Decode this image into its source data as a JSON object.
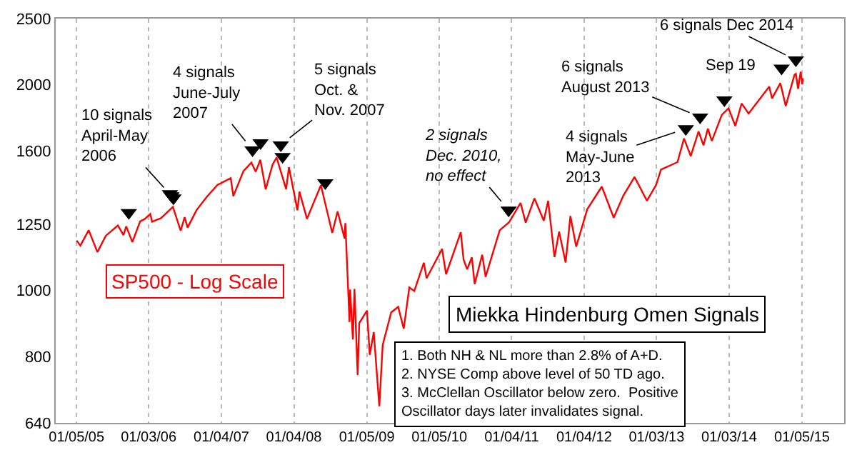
{
  "chart_data": {
    "type": "line",
    "title": "Miekka Hindenburg Omen Signals",
    "subtitle": "SP500 - Log Scale",
    "log": true,
    "grid": "x",
    "line_style": "solid",
    "xlim": [
      "2004-09-22",
      "2015-08-05"
    ],
    "ylim": [
      640,
      2500
    ],
    "xticks": [
      {
        "value": "2005-01-05",
        "label": "01/05/05"
      },
      {
        "value": "2006-01-03",
        "label": "01/03/06"
      },
      {
        "value": "2007-01-04",
        "label": "01/04/07"
      },
      {
        "value": "2008-01-04",
        "label": "01/04/08"
      },
      {
        "value": "2009-01-05",
        "label": "01/05/09"
      },
      {
        "value": "2010-01-05",
        "label": "01/05/10"
      },
      {
        "value": "2011-01-04",
        "label": "01/04/11"
      },
      {
        "value": "2012-01-04",
        "label": "01/04/12"
      },
      {
        "value": "2013-01-03",
        "label": "01/03/13"
      },
      {
        "value": "2014-01-03",
        "label": "01/03/14"
      },
      {
        "value": "2015-01-05",
        "label": "01/05/15"
      }
    ],
    "yticks": [
      640,
      800,
      1000,
      1250,
      1600,
      2000,
      2500
    ],
    "series": [
      {
        "color": "#ff0000",
        "x": [
          "2005-01-05",
          "2005-01-24",
          "2005-03-07",
          "2005-04-20",
          "2005-06-01",
          "2005-08-01",
          "2005-08-29",
          "2005-09-12",
          "2005-10-13",
          "2005-11-21",
          "2005-12-14",
          "2006-01-11",
          "2006-01-20",
          "2006-03-06",
          "2006-05-05",
          "2006-06-13",
          "2006-07-03",
          "2006-07-18",
          "2006-09-01",
          "2006-10-20",
          "2006-12-15",
          "2007-02-20",
          "2007-03-05",
          "2007-04-25",
          "2007-06-04",
          "2007-06-26",
          "2007-07-19",
          "2007-08-15",
          "2007-09-19",
          "2007-10-09",
          "2007-11-26",
          "2007-12-10",
          "2008-01-22",
          "2008-02-01",
          "2008-03-10",
          "2008-05-19",
          "2008-07-15",
          "2008-08-11",
          "2008-09-15",
          "2008-09-19",
          "2008-10-10",
          "2008-10-13",
          "2008-10-27",
          "2008-11-04",
          "2008-11-20",
          "2008-11-28",
          "2009-01-06",
          "2009-01-20",
          "2009-02-09",
          "2009-03-09",
          "2009-03-26",
          "2009-05-08",
          "2009-06-12",
          "2009-07-10",
          "2009-08-07",
          "2009-09-01",
          "2009-10-19",
          "2009-11-02",
          "2010-01-19",
          "2010-02-08",
          "2010-04-23",
          "2010-05-07",
          "2010-05-25",
          "2010-06-18",
          "2010-07-02",
          "2010-08-09",
          "2010-08-26",
          "2010-11-05",
          "2010-12-22",
          "2011-02-18",
          "2011-03-16",
          "2011-04-29",
          "2011-06-15",
          "2011-07-07",
          "2011-08-08",
          "2011-08-31",
          "2011-10-03",
          "2011-10-27",
          "2011-11-25",
          "2012-01-20",
          "2012-04-02",
          "2012-06-01",
          "2012-07-19",
          "2012-09-14",
          "2012-11-15",
          "2012-12-31",
          "2013-01-25",
          "2013-04-18",
          "2013-05-21",
          "2013-06-24",
          "2013-08-02",
          "2013-08-27",
          "2013-09-18",
          "2013-10-08",
          "2013-11-27",
          "2013-12-31",
          "2014-02-03",
          "2014-03-07",
          "2014-04-11",
          "2014-07-24",
          "2014-08-07",
          "2014-09-18",
          "2014-10-15",
          "2014-11-28",
          "2014-12-05",
          "2014-12-16",
          "2014-12-29",
          "2015-01-06",
          "2015-01-09"
        ],
        "values": [
          1183,
          1163,
          1225,
          1138,
          1202,
          1245,
          1205,
          1241,
          1177,
          1262,
          1272,
          1294,
          1261,
          1276,
          1325,
          1223,
          1280,
          1236,
          1311,
          1368,
          1427,
          1460,
          1374,
          1495,
          1539,
          1492,
          1553,
          1406,
          1529,
          1565,
          1407,
          1515,
          1310,
          1395,
          1273,
          1426,
          1214,
          1305,
          1192,
          1255,
          899,
          1003,
          848,
          1005,
          752,
          896,
          934,
          805,
          869,
          677,
          832,
          929,
          946,
          879,
          1010,
          998,
          1098,
          1042,
          1150,
          1056,
          1217,
          1110,
          1074,
          1118,
          1022,
          1128,
          1047,
          1225,
          1258,
          1343,
          1257,
          1364,
          1265,
          1353,
          1119,
          1219,
          1099,
          1285,
          1159,
          1315,
          1419,
          1278,
          1376,
          1466,
          1353,
          1426,
          1503,
          1541,
          1669,
          1573,
          1709,
          1631,
          1725,
          1655,
          1807,
          1848,
          1741,
          1878,
          1815,
          1988,
          1910,
          2011,
          1862,
          2068,
          2075,
          1973,
          2090,
          2003,
          2045
        ]
      },
      {
        "type": "scatter",
        "color": "#000000",
        "marker": "triangle",
        "x": [
          "2005-09-25",
          "2006-04-20",
          "2006-04-28",
          "2006-05-08",
          "2007-06-10",
          "2007-07-20",
          "2007-10-30",
          "2007-11-08",
          "2008-06-10",
          "2010-12-20",
          "2013-05-30",
          "2013-08-10",
          "2013-12-10",
          "2014-09-24",
          "2014-12-05"
        ],
        "values": [
          1300,
          1385,
          1375,
          1365,
          1605,
          1644,
          1633,
          1570,
          1437,
          1311,
          1725,
          1793,
          1900,
          2115,
          2174
        ]
      }
    ],
    "annotations": [
      {
        "text": "10 signals\nApril-May\n2006",
        "x": "2006-04-28",
        "y": 1375
      },
      {
        "text": "4 signals\nJune-July\n2007",
        "x": "2007-06-10",
        "y": 1605
      },
      {
        "text": "5 signals\nOct. &\nNov. 2007",
        "x": "2007-10-30",
        "y": 1633
      },
      {
        "text": "2 signals\nDec. 2010,\nno effect",
        "x": "2010-12-20",
        "y": 1311
      },
      {
        "text": "4 signals\nMay-June\n2013",
        "x": "2013-05-30",
        "y": 1725
      },
      {
        "text": "6 signals\nAugust 2013",
        "x": "2013-08-10",
        "y": 1793
      },
      {
        "text": "Sep 19",
        "x": "2014-09-24",
        "y": 2115
      },
      {
        "text": "6 signals Dec 2014",
        "x": "2014-12-05",
        "y": 2174
      },
      "1. Both NH & NL more than 2.8% of A+D.\n2. NYSE Comp above level of 50 TD ago.\n3. McClellan Oscillator below zero.  Positive\nOscillator days later invalidates signal."
    ]
  }
}
